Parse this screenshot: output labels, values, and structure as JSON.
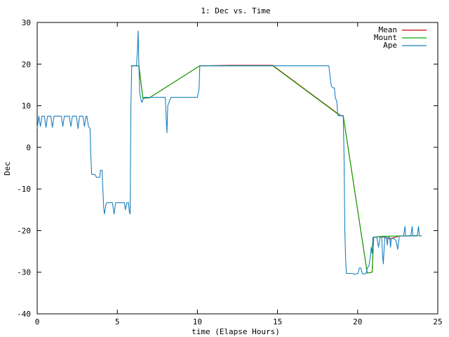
{
  "chart_data": {
    "type": "line",
    "title": "1: Dec vs. Time",
    "xlabel": "time (Elapse Hours)",
    "ylabel": "Dec",
    "xlim": [
      0,
      25
    ],
    "ylim": [
      -40,
      30
    ],
    "x_ticks": [
      0,
      5,
      10,
      15,
      20,
      25
    ],
    "y_ticks": [
      -40,
      -30,
      -20,
      -10,
      0,
      10,
      20,
      30
    ],
    "grid": false,
    "legend_position": "top-right",
    "series": [
      {
        "name": "Mean",
        "color": "#cc0000",
        "points": [
          [
            5.85,
            19.6
          ],
          [
            6.35,
            19.6
          ],
          [
            6.6,
            11.8
          ],
          [
            7.0,
            11.9
          ],
          [
            10.15,
            19.6
          ],
          [
            12.0,
            19.7
          ],
          [
            14.7,
            19.7
          ],
          [
            18.9,
            7.7
          ],
          [
            19.1,
            7.6
          ],
          [
            20.6,
            -30.2
          ],
          [
            20.9,
            -30.0
          ],
          [
            21.0,
            -21.6
          ],
          [
            21.5,
            -21.4
          ],
          [
            22.0,
            -22.0
          ],
          [
            22.6,
            -21.3
          ],
          [
            23.2,
            -21.3
          ],
          [
            23.8,
            -21.2
          ]
        ]
      },
      {
        "name": "Mount",
        "color": "#00aa00",
        "points": [
          [
            5.85,
            19.6
          ],
          [
            6.35,
            19.6
          ],
          [
            6.6,
            11.8
          ],
          [
            7.0,
            11.9
          ],
          [
            10.15,
            19.6
          ],
          [
            14.7,
            19.6
          ],
          [
            18.9,
            7.6
          ],
          [
            19.1,
            7.6
          ],
          [
            20.6,
            -30.2
          ],
          [
            20.9,
            -30.0
          ],
          [
            21.0,
            -21.6
          ],
          [
            21.5,
            -21.4
          ],
          [
            22.6,
            -21.3
          ],
          [
            23.8,
            -21.2
          ]
        ]
      },
      {
        "name": "Ape",
        "color": "#1a80c0",
        "points": [
          [
            0.0,
            4.5
          ],
          [
            0.1,
            7.5
          ],
          [
            0.2,
            5.0
          ],
          [
            0.3,
            7.5
          ],
          [
            0.45,
            7.5
          ],
          [
            0.55,
            4.8
          ],
          [
            0.65,
            7.5
          ],
          [
            0.85,
            7.5
          ],
          [
            0.95,
            4.8
          ],
          [
            1.05,
            7.5
          ],
          [
            1.5,
            7.5
          ],
          [
            1.6,
            5.0
          ],
          [
            1.7,
            7.5
          ],
          [
            2.0,
            7.5
          ],
          [
            2.1,
            5.0
          ],
          [
            2.2,
            7.5
          ],
          [
            2.3,
            7.5
          ],
          [
            2.45,
            7.5
          ],
          [
            2.55,
            4.5
          ],
          [
            2.65,
            7.5
          ],
          [
            2.85,
            7.5
          ],
          [
            2.95,
            5.0
          ],
          [
            3.05,
            7.5
          ],
          [
            3.1,
            7.5
          ],
          [
            3.2,
            5.0
          ],
          [
            3.3,
            4.5
          ],
          [
            3.35,
            -2.0
          ],
          [
            3.4,
            -6.5
          ],
          [
            3.6,
            -6.5
          ],
          [
            3.7,
            -7.2
          ],
          [
            3.9,
            -7.2
          ],
          [
            3.95,
            -5.5
          ],
          [
            4.05,
            -5.5
          ],
          [
            4.1,
            -10.0
          ],
          [
            4.15,
            -14.5
          ],
          [
            4.2,
            -16.0
          ],
          [
            4.3,
            -13.5
          ],
          [
            4.35,
            -13.3
          ],
          [
            4.7,
            -13.3
          ],
          [
            4.8,
            -16.0
          ],
          [
            4.9,
            -13.3
          ],
          [
            5.3,
            -13.3
          ],
          [
            5.45,
            -13.3
          ],
          [
            5.5,
            -15.0
          ],
          [
            5.6,
            -13.3
          ],
          [
            5.7,
            -13.3
          ],
          [
            5.75,
            -15.5
          ],
          [
            5.8,
            -16.0
          ],
          [
            5.85,
            10.0
          ],
          [
            5.9,
            19.6
          ],
          [
            6.2,
            19.6
          ],
          [
            6.25,
            23.0
          ],
          [
            6.3,
            28.0
          ],
          [
            6.35,
            19.5
          ],
          [
            6.4,
            13.0
          ],
          [
            6.5,
            11.0
          ],
          [
            6.55,
            10.8
          ],
          [
            6.65,
            12.0
          ],
          [
            7.0,
            12.0
          ],
          [
            8.0,
            12.0
          ],
          [
            8.05,
            7.0
          ],
          [
            8.1,
            3.5
          ],
          [
            8.15,
            10.0
          ],
          [
            8.25,
            11.0
          ],
          [
            8.35,
            12.0
          ],
          [
            9.0,
            12.0
          ],
          [
            9.85,
            12.0
          ],
          [
            10.0,
            12.0
          ],
          [
            10.1,
            14.0
          ],
          [
            10.15,
            19.6
          ],
          [
            14.8,
            19.6
          ],
          [
            18.0,
            19.6
          ],
          [
            18.1,
            19.6
          ],
          [
            18.2,
            19.6
          ],
          [
            18.35,
            14.8
          ],
          [
            18.45,
            14.3
          ],
          [
            18.55,
            14.3
          ],
          [
            18.6,
            12.0
          ],
          [
            18.7,
            11.0
          ],
          [
            18.75,
            8.0
          ],
          [
            18.8,
            7.6
          ],
          [
            19.1,
            7.6
          ],
          [
            19.15,
            -2.0
          ],
          [
            19.2,
            -20.0
          ],
          [
            19.25,
            -27.0
          ],
          [
            19.3,
            -30.3
          ],
          [
            19.7,
            -30.3
          ],
          [
            19.8,
            -30.5
          ],
          [
            19.9,
            -30.4
          ],
          [
            20.0,
            -30.4
          ],
          [
            20.05,
            -30.0
          ],
          [
            20.1,
            -29.0
          ],
          [
            20.2,
            -29.0
          ],
          [
            20.3,
            -30.4
          ],
          [
            20.5,
            -30.4
          ],
          [
            20.55,
            -30.0
          ],
          [
            20.6,
            -29.0
          ],
          [
            20.7,
            -28.5
          ],
          [
            20.8,
            -26.0
          ],
          [
            20.85,
            -24.0
          ],
          [
            20.9,
            -25.5
          ],
          [
            20.95,
            -21.6
          ],
          [
            21.2,
            -21.6
          ],
          [
            21.3,
            -24.0
          ],
          [
            21.4,
            -21.6
          ],
          [
            21.5,
            -21.6
          ],
          [
            21.55,
            -25.5
          ],
          [
            21.6,
            -28.0
          ],
          [
            21.65,
            -24.5
          ],
          [
            21.7,
            -21.6
          ],
          [
            21.8,
            -21.6
          ],
          [
            21.85,
            -23.5
          ],
          [
            21.9,
            -21.6
          ],
          [
            22.0,
            -21.6
          ],
          [
            22.05,
            -24.0
          ],
          [
            22.1,
            -21.8
          ],
          [
            22.3,
            -22.0
          ],
          [
            22.4,
            -22.5
          ],
          [
            22.5,
            -24.5
          ],
          [
            22.6,
            -21.3
          ],
          [
            22.85,
            -21.3
          ],
          [
            22.9,
            -20.5
          ],
          [
            22.95,
            -19.0
          ],
          [
            23.0,
            -21.3
          ],
          [
            23.3,
            -21.3
          ],
          [
            23.35,
            -20.5
          ],
          [
            23.4,
            -19.0
          ],
          [
            23.45,
            -21.3
          ],
          [
            23.7,
            -21.3
          ],
          [
            23.75,
            -20.5
          ],
          [
            23.8,
            -19.0
          ],
          [
            23.85,
            -21.3
          ],
          [
            24.0,
            -21.3
          ]
        ]
      }
    ]
  }
}
